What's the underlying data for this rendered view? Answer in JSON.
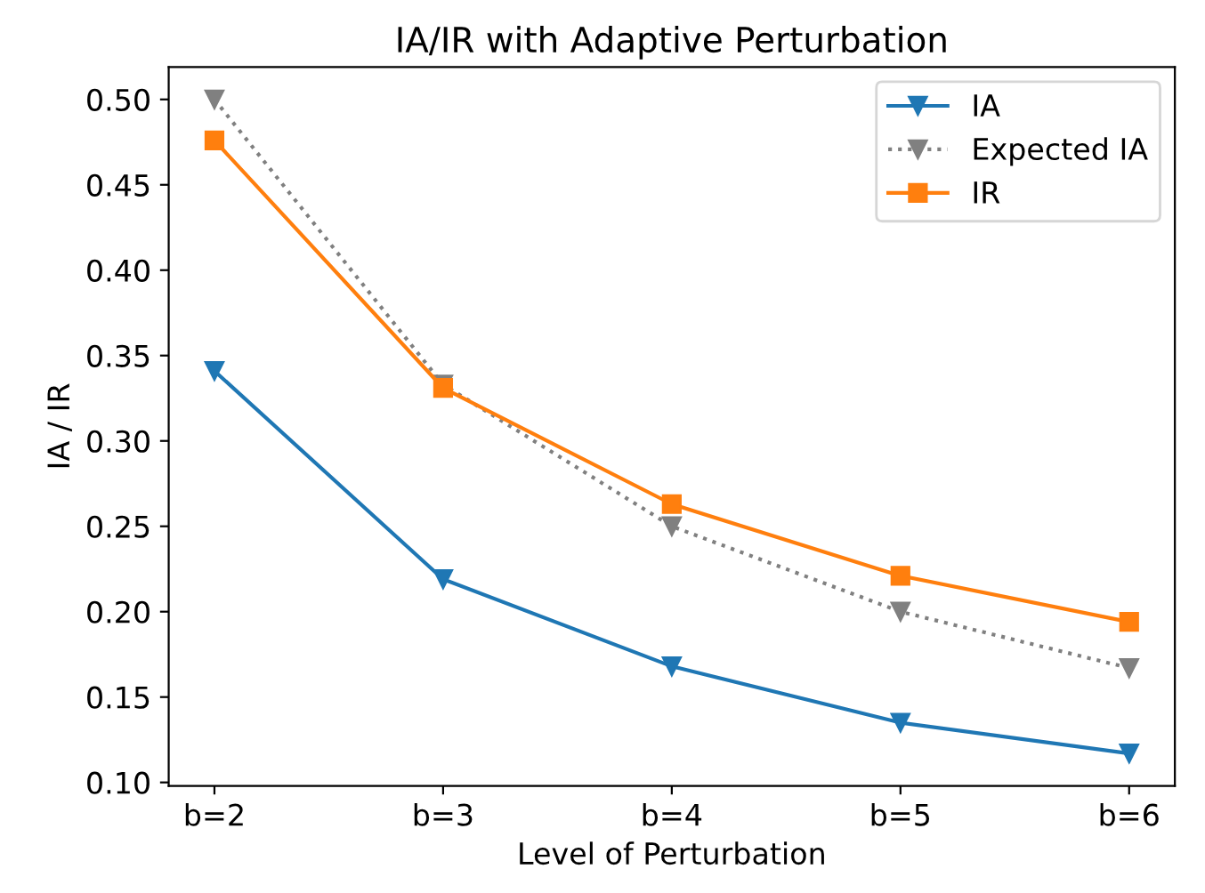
{
  "chart_data": {
    "type": "line",
    "title": "IA/IR with Adaptive Perturbation",
    "xlabel": "Level of Perturbation",
    "ylabel": "IA / IR",
    "categories": [
      "b=2",
      "b=3",
      "b=4",
      "b=5",
      "b=6"
    ],
    "series": [
      {
        "name": "IA",
        "color": "#1f77b4",
        "marker": "triangle",
        "line_style": "solid",
        "values": [
          0.341,
          0.219,
          0.168,
          0.135,
          0.117
        ]
      },
      {
        "name": "Expected IA",
        "color": "#808080",
        "marker": "triangle",
        "line_style": "dotted",
        "values": [
          0.5,
          0.333,
          0.25,
          0.2,
          0.167
        ]
      },
      {
        "name": "IR",
        "color": "#ff7f0e",
        "marker": "square",
        "line_style": "solid",
        "values": [
          0.476,
          0.331,
          0.263,
          0.221,
          0.194
        ]
      }
    ],
    "ylim": [
      0.098,
      0.519
    ],
    "yticks": [
      {
        "value": 0.1,
        "label": "0.10"
      },
      {
        "value": 0.15,
        "label": "0.15"
      },
      {
        "value": 0.2,
        "label": "0.20"
      },
      {
        "value": 0.25,
        "label": "0.25"
      },
      {
        "value": 0.3,
        "label": "0.30"
      },
      {
        "value": 0.35,
        "label": "0.35"
      },
      {
        "value": 0.4,
        "label": "0.40"
      },
      {
        "value": 0.45,
        "label": "0.45"
      },
      {
        "value": 0.5,
        "label": "0.50"
      }
    ],
    "grid": false,
    "legend": "top right"
  }
}
